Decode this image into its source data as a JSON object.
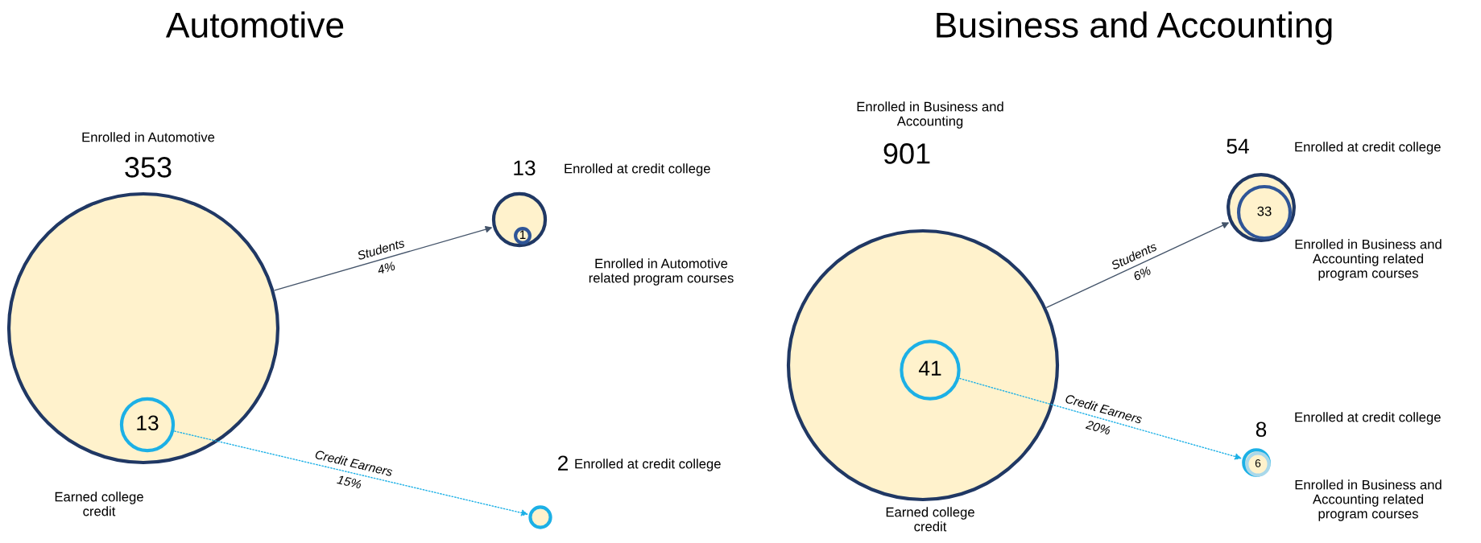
{
  "chart_data": [
    {
      "type": "other",
      "title": "Automotive",
      "categories": [
        "Enrolled in Automotive",
        "Enrolled at credit college",
        "Enrolled in Automotive\nrelated program courses",
        "Earned college\ncredit",
        "Enrolled at credit college"
      ],
      "values": [
        353,
        13,
        1,
        13,
        2
      ],
      "colors": [
        "#203864",
        "#203864",
        "#2f5597",
        "#1cb0e6",
        "#1cb0e6"
      ],
      "data_labels": true,
      "annotations": [
        "Students",
        "4%",
        "Credit Earners",
        "15%"
      ]
    },
    {
      "type": "other",
      "title": "Business and Accounting",
      "categories": [
        "Enrolled in Business and\nAccounting",
        "Enrolled at credit college",
        "Enrolled in Business and\nAccounting related\nprogram courses",
        "Earned college\ncredit",
        "Enrolled at credit college",
        "Enrolled in Business and\nAccounting related\nprogram courses"
      ],
      "values": [
        901,
        54,
        33,
        41,
        8,
        6
      ],
      "colors": [
        "#203864",
        "#203864",
        "#2f5597",
        "#1cb0e6",
        "#1cb0e6",
        "#a9d8ea"
      ],
      "data_labels": true,
      "annotations": [
        "Students",
        "6%",
        "Credit Earners",
        "20%"
      ]
    }
  ]
}
